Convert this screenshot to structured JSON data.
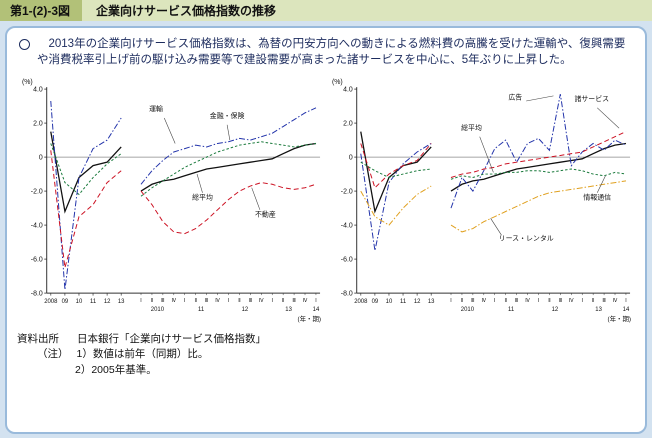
{
  "page": {
    "figure_label": "第1-(2)-3図",
    "figure_title": "企業向けサービス価格指数の推移",
    "bullet_text": "2013年の企業向けサービス価格指数は、為替の円安方向への動きによる燃料費の高騰を受けた運輸や、復興需要や消費税率引上げ前の駆け込み需要等で建設需要が高まった諸サービスを中心に、5年ぶりに上昇した。",
    "source_label": "資料出所",
    "source_text": "日本銀行「企業向けサービス価格指数」",
    "note_label": "（注）",
    "notes": [
      "1）数値は前年（同期）比。",
      "2）2005年基準。"
    ]
  },
  "chart_data": [
    {
      "type": "line",
      "title": "",
      "percent_label": "(%)",
      "x_axis_unit": "(年・期)",
      "ylim": [
        -8.0,
        4.0
      ],
      "yticks": [
        4.0,
        2.0,
        0,
        -2.0,
        -4.0,
        -6.0,
        -8.0
      ],
      "grid": "zero-line-only",
      "x_annual_labels": [
        "2008",
        "09",
        "10",
        "11",
        "12",
        "13"
      ],
      "quarter_labels": [
        "Ⅰ",
        "Ⅱ",
        "Ⅲ",
        "Ⅳ"
      ],
      "x_quarter_years": [
        "2010",
        "11",
        "12",
        "13",
        "14"
      ],
      "series": [
        {
          "name": "総平均",
          "color": "#111111",
          "dash": "solid",
          "width": 1.3,
          "annual": [
            1.5,
            -3.2,
            -1.2,
            -0.5,
            -0.3,
            0.6
          ],
          "quarterly": [
            -2.0,
            -1.6,
            -1.4,
            -1.3,
            -1.1,
            -0.9,
            -0.7,
            -0.6,
            -0.5,
            -0.4,
            -0.3,
            -0.2,
            -0.1,
            0.2,
            0.5,
            0.7,
            0.8
          ]
        },
        {
          "name": "運輸",
          "color": "#2233aa",
          "dash": "6 2 1.5 2",
          "width": 1,
          "annual": [
            3.3,
            -7.8,
            -1.2,
            0.5,
            1.0,
            2.3
          ],
          "quarterly": [
            -1.6,
            -0.8,
            -0.2,
            0.3,
            0.5,
            0.7,
            0.6,
            0.8,
            0.9,
            1.1,
            1.0,
            1.2,
            1.4,
            1.8,
            2.2,
            2.6,
            2.9
          ]
        },
        {
          "name": "金融・保険",
          "color": "#1a7a3c",
          "dash": "2.5 2",
          "width": 1,
          "annual": [
            0.8,
            -1.5,
            -2.2,
            -1.2,
            -0.4,
            0.2
          ],
          "quarterly": [
            -2.3,
            -1.8,
            -1.4,
            -1.0,
            -0.6,
            -0.3,
            0.0,
            0.3,
            0.5,
            0.7,
            0.8,
            0.9,
            0.8,
            0.7,
            0.6,
            0.7,
            0.8
          ]
        },
        {
          "name": "不動産",
          "color": "#cc1122",
          "dash": "5 3",
          "width": 1,
          "annual": [
            0.4,
            -6.5,
            -3.5,
            -2.8,
            -1.5,
            -0.8
          ],
          "quarterly": [
            -2.0,
            -2.8,
            -3.8,
            -4.4,
            -4.5,
            -4.2,
            -3.7,
            -3.1,
            -2.5,
            -2.0,
            -1.7,
            -1.5,
            -1.6,
            -1.8,
            -1.9,
            -1.8,
            -1.6
          ]
        }
      ],
      "annotations": [
        {
          "text": "運輸",
          "x": 0.4,
          "y": 2.7,
          "line": [
            0.43,
            2.3,
            0.47,
            0.8
          ]
        },
        {
          "text": "金融・保険",
          "x": 0.66,
          "y": 2.3,
          "line": [
            0.66,
            1.9,
            0.67,
            1.0
          ]
        },
        {
          "text": "総平均",
          "x": 0.57,
          "y": -2.5,
          "line": [
            0.57,
            -2.1,
            0.55,
            -1.0
          ]
        },
        {
          "text": "不動産",
          "x": 0.8,
          "y": -3.5,
          "line": [
            0.78,
            -3.1,
            0.75,
            -1.8
          ]
        }
      ]
    },
    {
      "type": "line",
      "title": "",
      "percent_label": "(%)",
      "x_axis_unit": "(年・期)",
      "ylim": [
        -8.0,
        4.0
      ],
      "yticks": [
        4.0,
        2.0,
        0,
        -2.0,
        -4.0,
        -6.0,
        -8.0
      ],
      "grid": "zero-line-only",
      "x_annual_labels": [
        "2008",
        "09",
        "10",
        "11",
        "12",
        "13"
      ],
      "quarter_labels": [
        "Ⅰ",
        "Ⅱ",
        "Ⅲ",
        "Ⅳ"
      ],
      "x_quarter_years": [
        "2010",
        "11",
        "12",
        "13",
        "14"
      ],
      "series": [
        {
          "name": "総平均",
          "color": "#111111",
          "dash": "solid",
          "width": 1.3,
          "annual": [
            1.5,
            -3.2,
            -1.2,
            -0.5,
            -0.3,
            0.6
          ],
          "quarterly": [
            -2.0,
            -1.6,
            -1.4,
            -1.3,
            -1.1,
            -0.9,
            -0.7,
            -0.6,
            -0.5,
            -0.4,
            -0.3,
            -0.2,
            -0.1,
            0.2,
            0.5,
            0.7,
            0.8
          ]
        },
        {
          "name": "広告",
          "color": "#2233aa",
          "dash": "6 2 1.5 2",
          "width": 1,
          "annual": [
            0.2,
            -5.5,
            -1.5,
            -0.4,
            0.3,
            0.8
          ],
          "quarterly": [
            -3.0,
            -1.2,
            -2.0,
            -0.8,
            0.5,
            1.0,
            -0.3,
            0.8,
            1.1,
            0.4,
            3.7,
            -0.5,
            0.3,
            0.8,
            0.4,
            1.0,
            0.7
          ]
        },
        {
          "name": "諸サービス",
          "color": "#cc1122",
          "dash": "5 3",
          "width": 1,
          "annual": [
            0.8,
            -1.8,
            -1.0,
            -0.5,
            -0.2,
            0.8
          ],
          "quarterly": [
            -1.2,
            -1.0,
            -0.9,
            -0.7,
            -0.6,
            -0.4,
            -0.3,
            -0.2,
            -0.1,
            0.0,
            0.1,
            0.2,
            0.3,
            0.6,
            0.9,
            1.2,
            1.5
          ]
        },
        {
          "name": "情報通信",
          "color": "#1a7a3c",
          "dash": "2.5 2",
          "width": 1,
          "annual": [
            -0.3,
            -0.8,
            -1.2,
            -1.0,
            -0.8,
            -0.7
          ],
          "quarterly": [
            -1.3,
            -1.1,
            -1.2,
            -1.0,
            -1.0,
            -0.9,
            -0.9,
            -0.8,
            -0.8,
            -0.9,
            -0.8,
            -0.7,
            -0.8,
            -1.0,
            -1.1,
            -0.9,
            -1.0
          ]
        },
        {
          "name": "リース・レンタル",
          "color": "#e0a01e",
          "dash": "6 2 1.5 2",
          "width": 1,
          "annual": [
            -2.0,
            -3.5,
            -4.0,
            -3.0,
            -2.2,
            -1.7
          ],
          "quarterly": [
            -4.0,
            -4.4,
            -4.2,
            -3.8,
            -3.5,
            -3.2,
            -2.9,
            -2.6,
            -2.3,
            -2.1,
            -2.0,
            -1.9,
            -1.8,
            -1.7,
            -1.6,
            -1.5,
            -1.4
          ]
        }
      ],
      "annotations": [
        {
          "text": "総平均",
          "x": 0.42,
          "y": 1.6,
          "line": [
            0.45,
            1.2,
            0.5,
            -0.9
          ]
        },
        {
          "text": "広告",
          "x": 0.58,
          "y": 3.4,
          "line": [
            0.62,
            3.3,
            0.72,
            3.6
          ]
        },
        {
          "text": "諸サービス",
          "x": 0.86,
          "y": 3.3,
          "line": [
            0.88,
            2.9,
            0.96,
            1.7
          ]
        },
        {
          "text": "情報通信",
          "x": 0.88,
          "y": -2.5,
          "line": [
            0.88,
            -2.1,
            0.91,
            -1.1
          ]
        },
        {
          "text": "リース・レンタル",
          "x": 0.62,
          "y": -4.9,
          "line": [
            0.53,
            -4.6,
            0.49,
            -3.6
          ]
        }
      ]
    }
  ]
}
